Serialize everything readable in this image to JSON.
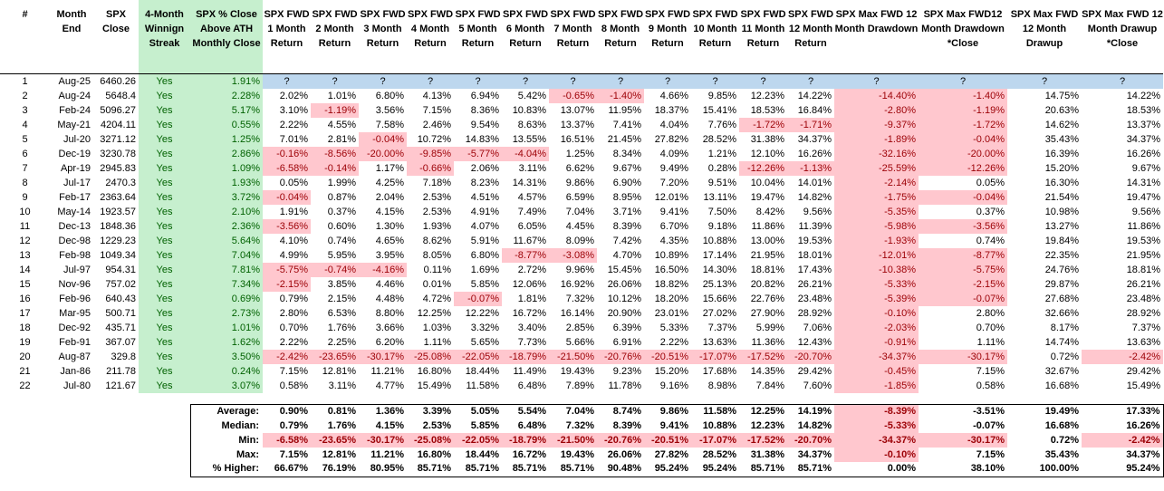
{
  "headers": [
    "#",
    "Month End",
    "SPX Close",
    "4-Month Winnign Streak",
    "SPX % Close Above ATH Monthly Close",
    "SPX FWD 1 Month Return",
    "SPX FWD 2 Month Return",
    "SPX FWD 3 Month Return",
    "SPX FWD 4 Month Return",
    "SPX FWD 5 Month Return",
    "SPX FWD 6 Month Return",
    "SPX FWD 7 Month Return",
    "SPX FWD 8 Month Return",
    "SPX FWD 9 Month Return",
    "SPX FWD 10 Month Return",
    "SPX FWD 11 Month Return",
    "SPX FWD 12 Month Return",
    "SPX Max FWD 12 Month Drawdown",
    "SPX Max FWD12 Month Drawdown *Close",
    "SPX Max FWD 12 Month Drawup",
    "SPX Max FWD 12 Month Drawup *Close"
  ],
  "rows": [
    [
      "1",
      "Aug-25",
      "6460.26",
      "Yes",
      "1.91%",
      "?",
      "?",
      "?",
      "?",
      "?",
      "?",
      "?",
      "?",
      "?",
      "?",
      "?",
      "?",
      "?",
      "?",
      "?",
      "?"
    ],
    [
      "2",
      "Aug-24",
      "5648.4",
      "Yes",
      "2.28%",
      "2.02%",
      "1.01%",
      "6.80%",
      "4.13%",
      "6.94%",
      "5.42%",
      "-0.65%",
      "-1.40%",
      "4.66%",
      "9.85%",
      "12.23%",
      "14.22%",
      "-14.40%",
      "-1.40%",
      "14.75%",
      "14.22%"
    ],
    [
      "3",
      "Feb-24",
      "5096.27",
      "Yes",
      "5.17%",
      "3.10%",
      "-1.19%",
      "3.56%",
      "7.15%",
      "8.36%",
      "10.83%",
      "13.07%",
      "11.95%",
      "18.37%",
      "15.41%",
      "18.53%",
      "16.84%",
      "-2.80%",
      "-1.19%",
      "20.63%",
      "18.53%"
    ],
    [
      "4",
      "May-21",
      "4204.11",
      "Yes",
      "0.55%",
      "2.22%",
      "4.55%",
      "7.58%",
      "2.46%",
      "9.54%",
      "8.63%",
      "13.37%",
      "7.41%",
      "4.04%",
      "7.76%",
      "-1.72%",
      "-1.71%",
      "-9.37%",
      "-1.72%",
      "14.62%",
      "13.37%"
    ],
    [
      "5",
      "Jul-20",
      "3271.12",
      "Yes",
      "1.25%",
      "7.01%",
      "2.81%",
      "-0.04%",
      "10.72%",
      "14.83%",
      "13.55%",
      "16.51%",
      "21.45%",
      "27.82%",
      "28.52%",
      "31.38%",
      "34.37%",
      "-1.89%",
      "-0.04%",
      "35.43%",
      "34.37%"
    ],
    [
      "6",
      "Dec-19",
      "3230.78",
      "Yes",
      "2.86%",
      "-0.16%",
      "-8.56%",
      "-20.00%",
      "-9.85%",
      "-5.77%",
      "-4.04%",
      "1.25%",
      "8.34%",
      "4.09%",
      "1.21%",
      "12.10%",
      "16.26%",
      "-32.16%",
      "-20.00%",
      "16.39%",
      "16.26%"
    ],
    [
      "7",
      "Apr-19",
      "2945.83",
      "Yes",
      "1.09%",
      "-6.58%",
      "-0.14%",
      "1.17%",
      "-0.66%",
      "2.06%",
      "3.11%",
      "6.62%",
      "9.67%",
      "9.49%",
      "0.28%",
      "-12.26%",
      "-1.13%",
      "-25.59%",
      "-12.26%",
      "15.20%",
      "9.67%"
    ],
    [
      "8",
      "Jul-17",
      "2470.3",
      "Yes",
      "1.93%",
      "0.05%",
      "1.99%",
      "4.25%",
      "7.18%",
      "8.23%",
      "14.31%",
      "9.86%",
      "6.90%",
      "7.20%",
      "9.51%",
      "10.04%",
      "14.01%",
      "-2.14%",
      "0.05%",
      "16.30%",
      "14.31%"
    ],
    [
      "9",
      "Feb-17",
      "2363.64",
      "Yes",
      "3.72%",
      "-0.04%",
      "0.87%",
      "2.04%",
      "2.53%",
      "4.51%",
      "4.57%",
      "6.59%",
      "8.95%",
      "12.01%",
      "13.11%",
      "19.47%",
      "14.82%",
      "-1.75%",
      "-0.04%",
      "21.54%",
      "19.47%"
    ],
    [
      "10",
      "May-14",
      "1923.57",
      "Yes",
      "2.10%",
      "1.91%",
      "0.37%",
      "4.15%",
      "2.53%",
      "4.91%",
      "7.49%",
      "7.04%",
      "3.71%",
      "9.41%",
      "7.50%",
      "8.42%",
      "9.56%",
      "-5.35%",
      "0.37%",
      "10.98%",
      "9.56%"
    ],
    [
      "11",
      "Dec-13",
      "1848.36",
      "Yes",
      "2.36%",
      "-3.56%",
      "0.60%",
      "1.30%",
      "1.93%",
      "4.07%",
      "6.05%",
      "4.45%",
      "8.39%",
      "6.70%",
      "9.18%",
      "11.86%",
      "11.39%",
      "-5.98%",
      "-3.56%",
      "13.27%",
      "11.86%"
    ],
    [
      "12",
      "Dec-98",
      "1229.23",
      "Yes",
      "5.64%",
      "4.10%",
      "0.74%",
      "4.65%",
      "8.62%",
      "5.91%",
      "11.67%",
      "8.09%",
      "7.42%",
      "4.35%",
      "10.88%",
      "13.00%",
      "19.53%",
      "-1.93%",
      "0.74%",
      "19.84%",
      "19.53%"
    ],
    [
      "13",
      "Feb-98",
      "1049.34",
      "Yes",
      "7.04%",
      "4.99%",
      "5.95%",
      "3.95%",
      "8.05%",
      "6.80%",
      "-8.77%",
      "-3.08%",
      "4.70%",
      "10.89%",
      "17.14%",
      "21.95%",
      "18.01%",
      "-12.01%",
      "-8.77%",
      "22.35%",
      "21.95%"
    ],
    [
      "14",
      "Jul-97",
      "954.31",
      "Yes",
      "7.81%",
      "-5.75%",
      "-0.74%",
      "-4.16%",
      "0.11%",
      "1.69%",
      "2.72%",
      "9.96%",
      "15.45%",
      "16.50%",
      "14.30%",
      "18.81%",
      "17.43%",
      "-10.38%",
      "-5.75%",
      "24.76%",
      "18.81%"
    ],
    [
      "15",
      "Nov-96",
      "757.02",
      "Yes",
      "7.34%",
      "-2.15%",
      "3.85%",
      "4.46%",
      "0.01%",
      "5.85%",
      "12.06%",
      "16.92%",
      "26.06%",
      "18.82%",
      "25.13%",
      "20.82%",
      "26.21%",
      "-5.33%",
      "-2.15%",
      "29.87%",
      "26.21%"
    ],
    [
      "16",
      "Feb-96",
      "640.43",
      "Yes",
      "0.69%",
      "0.79%",
      "2.15%",
      "4.48%",
      "4.72%",
      "-0.07%",
      "1.81%",
      "7.32%",
      "10.12%",
      "18.20%",
      "15.66%",
      "22.76%",
      "23.48%",
      "-5.39%",
      "-0.07%",
      "27.68%",
      "23.48%"
    ],
    [
      "17",
      "Mar-95",
      "500.71",
      "Yes",
      "2.73%",
      "2.80%",
      "6.53%",
      "8.80%",
      "12.25%",
      "12.22%",
      "16.72%",
      "16.14%",
      "20.90%",
      "23.01%",
      "27.02%",
      "27.90%",
      "28.92%",
      "-0.10%",
      "2.80%",
      "32.66%",
      "28.92%"
    ],
    [
      "18",
      "Dec-92",
      "435.71",
      "Yes",
      "1.01%",
      "0.70%",
      "1.76%",
      "3.66%",
      "1.03%",
      "3.32%",
      "3.40%",
      "2.85%",
      "6.39%",
      "5.33%",
      "7.37%",
      "5.99%",
      "7.06%",
      "-2.03%",
      "0.70%",
      "8.17%",
      "7.37%"
    ],
    [
      "19",
      "Feb-91",
      "367.07",
      "Yes",
      "1.62%",
      "2.22%",
      "2.25%",
      "6.20%",
      "1.11%",
      "5.65%",
      "7.73%",
      "5.66%",
      "6.91%",
      "2.22%",
      "13.63%",
      "11.36%",
      "12.43%",
      "-0.91%",
      "1.11%",
      "14.74%",
      "13.63%"
    ],
    [
      "20",
      "Aug-87",
      "329.8",
      "Yes",
      "3.50%",
      "-2.42%",
      "-23.65%",
      "-30.17%",
      "-25.08%",
      "-22.05%",
      "-18.79%",
      "-21.50%",
      "-20.76%",
      "-20.51%",
      "-17.07%",
      "-17.52%",
      "-20.70%",
      "-34.37%",
      "-30.17%",
      "0.72%",
      "-2.42%"
    ],
    [
      "21",
      "Jan-86",
      "211.78",
      "Yes",
      "0.24%",
      "7.15%",
      "12.81%",
      "11.21%",
      "16.80%",
      "18.44%",
      "11.49%",
      "19.43%",
      "9.23%",
      "15.20%",
      "17.68%",
      "14.35%",
      "29.42%",
      "-0.45%",
      "7.15%",
      "32.67%",
      "29.42%"
    ],
    [
      "22",
      "Jul-80",
      "121.67",
      "Yes",
      "3.07%",
      "0.58%",
      "3.11%",
      "4.77%",
      "15.49%",
      "11.58%",
      "6.48%",
      "7.89%",
      "11.78%",
      "9.16%",
      "8.98%",
      "7.84%",
      "7.60%",
      "-1.85%",
      "0.58%",
      "16.68%",
      "15.49%"
    ]
  ],
  "stats": [
    {
      "label": "Average:",
      "values": [
        "0.90%",
        "0.81%",
        "1.36%",
        "3.39%",
        "5.05%",
        "5.54%",
        "7.04%",
        "8.74%",
        "9.86%",
        "11.58%",
        "12.25%",
        "14.19%",
        "-8.39%",
        "-3.51%",
        "19.49%",
        "17.33%"
      ]
    },
    {
      "label": "Median:",
      "values": [
        "0.79%",
        "1.76%",
        "4.15%",
        "2.53%",
        "5.85%",
        "6.48%",
        "7.32%",
        "8.39%",
        "9.41%",
        "10.88%",
        "12.23%",
        "14.82%",
        "-5.33%",
        "-0.07%",
        "16.68%",
        "16.26%"
      ]
    },
    {
      "label": "Min:",
      "values": [
        "-6.58%",
        "-23.65%",
        "-30.17%",
        "-25.08%",
        "-22.05%",
        "-18.79%",
        "-21.50%",
        "-20.76%",
        "-20.51%",
        "-17.07%",
        "-17.52%",
        "-20.70%",
        "-34.37%",
        "-30.17%",
        "0.72%",
        "-2.42%"
      ]
    },
    {
      "label": "Max:",
      "values": [
        "7.15%",
        "12.81%",
        "11.21%",
        "16.80%",
        "18.44%",
        "16.72%",
        "19.43%",
        "26.06%",
        "27.82%",
        "28.52%",
        "31.38%",
        "34.37%",
        "-0.10%",
        "7.15%",
        "35.43%",
        "34.37%"
      ]
    },
    {
      "label": "% Higher:",
      "values": [
        "66.67%",
        "76.19%",
        "80.95%",
        "85.71%",
        "85.71%",
        "85.71%",
        "85.71%",
        "90.48%",
        "95.24%",
        "95.24%",
        "85.71%",
        "85.71%",
        "0.00%",
        "38.10%",
        "100.00%",
        "95.24%"
      ]
    }
  ],
  "colors": {
    "green_fill": "#c6efce",
    "green_text": "#006100",
    "red_fill": "#ffc7ce",
    "red_text": "#9c0006",
    "blue_fill": "#bdd7ee"
  }
}
